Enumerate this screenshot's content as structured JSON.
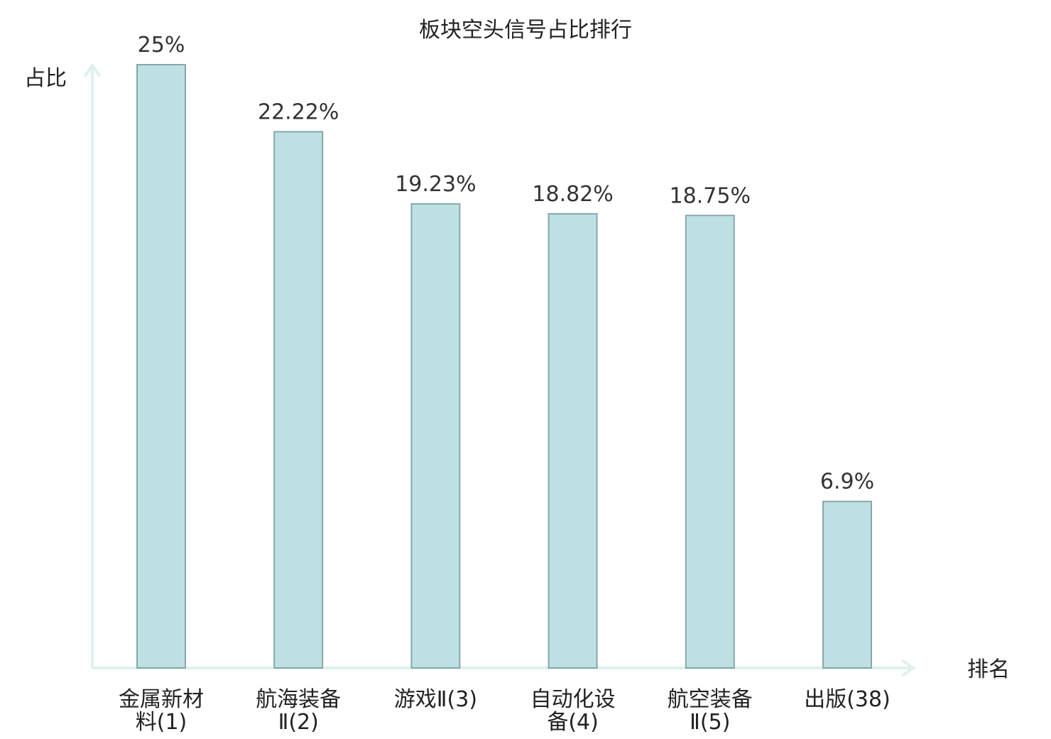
{
  "chart_data": {
    "type": "bar",
    "title": "板块空头信号占比排行",
    "ylabel": "占比",
    "xlabel": "排名",
    "categories": [
      [
        "金属新材",
        "料(1)"
      ],
      [
        "航海装备",
        "Ⅱ(2)"
      ],
      [
        "游戏Ⅱ(3)"
      ],
      [
        "自动化设",
        "备(4)"
      ],
      [
        "航空装备",
        "Ⅱ(5)"
      ],
      [
        "出版(38)"
      ]
    ],
    "values": [
      25,
      22.22,
      19.23,
      18.82,
      18.75,
      6.9
    ],
    "value_labels": [
      "25%",
      "22.22%",
      "19.23%",
      "18.82%",
      "18.75%",
      "6.9%"
    ],
    "highlight_index": 5,
    "ylim": [
      0,
      25
    ],
    "grid": false,
    "legend": "none"
  },
  "colors": {
    "bar_fill": "#bde0e3",
    "bar_stroke": "#86a7aa",
    "axis": "#dff1ef",
    "text": "#222222",
    "value_text": "#333333",
    "highlight_text": "#e00000"
  }
}
